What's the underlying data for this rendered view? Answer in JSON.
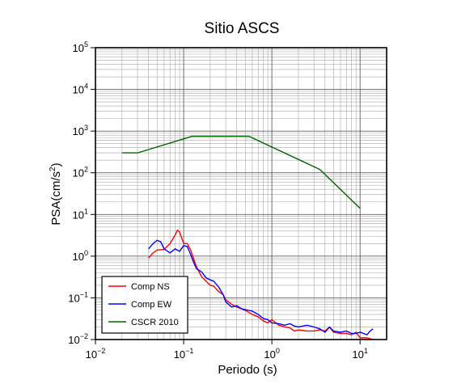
{
  "chart_data": {
    "type": "line",
    "title": "Sitio ASCS",
    "xlabel": "Periodo (s)",
    "ylabel_main": "PSA(cm/s",
    "ylabel_sup": "2",
    "ylabel_end": ")",
    "xscale": "log",
    "yscale": "log",
    "xlim": [
      0.01,
      20
    ],
    "ylim": [
      0.01,
      100000
    ],
    "grid": true,
    "legend_position": "bottom-left",
    "x_ticks": [
      {
        "base": "10",
        "exp": "−2",
        "value": 0.01
      },
      {
        "base": "10",
        "exp": "−1",
        "value": 0.1
      },
      {
        "base": "10",
        "exp": "0",
        "value": 1
      },
      {
        "base": "10",
        "exp": "1",
        "value": 10
      }
    ],
    "y_ticks": [
      {
        "base": "10",
        "exp": "−2",
        "value": 0.01
      },
      {
        "base": "10",
        "exp": "−1",
        "value": 0.1
      },
      {
        "base": "10",
        "exp": "0",
        "value": 1
      },
      {
        "base": "10",
        "exp": "1",
        "value": 10
      },
      {
        "base": "10",
        "exp": "2",
        "value": 100
      },
      {
        "base": "10",
        "exp": "3",
        "value": 1000
      },
      {
        "base": "10",
        "exp": "4",
        "value": 10000
      },
      {
        "base": "10",
        "exp": "5",
        "value": 100000
      }
    ],
    "series": [
      {
        "name": "Comp NS",
        "color": "#ff0000",
        "points": [
          [
            0.04,
            0.9
          ],
          [
            0.045,
            1.2
          ],
          [
            0.05,
            1.4
          ],
          [
            0.06,
            1.45
          ],
          [
            0.07,
            2.0
          ],
          [
            0.08,
            3.2
          ],
          [
            0.085,
            4.2
          ],
          [
            0.09,
            3.8
          ],
          [
            0.1,
            2.0
          ],
          [
            0.11,
            2.0
          ],
          [
            0.12,
            1.4
          ],
          [
            0.14,
            0.55
          ],
          [
            0.16,
            0.32
          ],
          [
            0.18,
            0.25
          ],
          [
            0.2,
            0.2
          ],
          [
            0.22,
            0.19
          ],
          [
            0.25,
            0.14
          ],
          [
            0.28,
            0.12
          ],
          [
            0.3,
            0.09
          ],
          [
            0.35,
            0.07
          ],
          [
            0.4,
            0.06
          ],
          [
            0.45,
            0.055
          ],
          [
            0.5,
            0.05
          ],
          [
            0.6,
            0.04
          ],
          [
            0.7,
            0.035
          ],
          [
            0.8,
            0.028
          ],
          [
            0.9,
            0.025
          ],
          [
            1.0,
            0.03
          ],
          [
            1.2,
            0.022
          ],
          [
            1.4,
            0.02
          ],
          [
            1.6,
            0.019
          ],
          [
            1.8,
            0.016
          ],
          [
            2.0,
            0.017
          ],
          [
            2.5,
            0.016
          ],
          [
            3.0,
            0.016
          ],
          [
            3.5,
            0.017
          ],
          [
            4.0,
            0.016
          ],
          [
            4.5,
            0.02
          ],
          [
            5.0,
            0.015
          ],
          [
            6.0,
            0.014
          ],
          [
            7.0,
            0.014
          ],
          [
            8.0,
            0.013
          ],
          [
            9.0,
            0.015
          ],
          [
            10.0,
            0.011
          ],
          [
            12.0,
            0.011
          ],
          [
            14.0,
            0.01
          ]
        ]
      },
      {
        "name": "Comp EW",
        "color": "#0000ff",
        "points": [
          [
            0.04,
            1.5
          ],
          [
            0.045,
            2.0
          ],
          [
            0.05,
            2.4
          ],
          [
            0.055,
            2.2
          ],
          [
            0.06,
            1.5
          ],
          [
            0.07,
            1.2
          ],
          [
            0.08,
            1.5
          ],
          [
            0.09,
            1.3
          ],
          [
            0.1,
            1.8
          ],
          [
            0.11,
            1.7
          ],
          [
            0.12,
            1.1
          ],
          [
            0.13,
            0.7
          ],
          [
            0.14,
            0.5
          ],
          [
            0.16,
            0.42
          ],
          [
            0.18,
            0.3
          ],
          [
            0.2,
            0.27
          ],
          [
            0.22,
            0.25
          ],
          [
            0.25,
            0.18
          ],
          [
            0.28,
            0.12
          ],
          [
            0.3,
            0.08
          ],
          [
            0.35,
            0.06
          ],
          [
            0.4,
            0.065
          ],
          [
            0.45,
            0.055
          ],
          [
            0.5,
            0.052
          ],
          [
            0.6,
            0.048
          ],
          [
            0.7,
            0.04
          ],
          [
            0.8,
            0.032
          ],
          [
            0.9,
            0.03
          ],
          [
            1.0,
            0.025
          ],
          [
            1.2,
            0.024
          ],
          [
            1.4,
            0.022
          ],
          [
            1.6,
            0.024
          ],
          [
            1.8,
            0.021
          ],
          [
            2.0,
            0.02
          ],
          [
            2.5,
            0.022
          ],
          [
            3.0,
            0.02
          ],
          [
            3.5,
            0.018
          ],
          [
            4.0,
            0.015
          ],
          [
            4.5,
            0.02
          ],
          [
            5.0,
            0.016
          ],
          [
            6.0,
            0.015
          ],
          [
            7.0,
            0.016
          ],
          [
            8.0,
            0.014
          ],
          [
            9.0,
            0.014
          ],
          [
            10.0,
            0.015
          ],
          [
            12.0,
            0.013
          ],
          [
            13.0,
            0.016
          ],
          [
            14.0,
            0.018
          ]
        ]
      },
      {
        "name": "CSCR 2010",
        "color": "#006400",
        "points": [
          [
            0.02,
            300
          ],
          [
            0.03,
            300
          ],
          [
            0.125,
            750
          ],
          [
            0.55,
            750
          ],
          [
            3.5,
            120
          ],
          [
            10.0,
            14
          ]
        ]
      }
    ]
  }
}
